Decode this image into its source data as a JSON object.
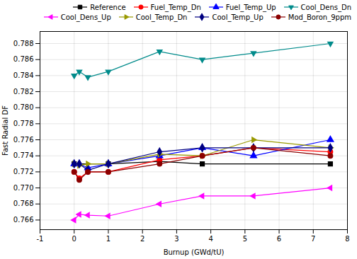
{
  "chart_data": {
    "type": "line",
    "xlabel": "Burnup (GWd/tU)",
    "ylabel": "Fast Radial DF",
    "xlim": [
      -1,
      8
    ],
    "ylim": [
      0.7648,
      0.7895
    ],
    "xticks": [
      -1,
      0,
      1,
      2,
      3,
      4,
      5,
      6,
      7,
      8
    ],
    "yticks": [
      0.766,
      0.768,
      {
        "value": 0.77,
        "label": "0.770"
      },
      0.772,
      0.774,
      0.776,
      0.778,
      {
        "value": 0.78,
        "label": "0.780"
      },
      0.782,
      0.784,
      0.786,
      0.788
    ],
    "grid": true,
    "legend": "upper right",
    "series": [
      {
        "name": "Reference",
        "color": "#000000",
        "marker": "square",
        "x": [
          0.0,
          1.0,
          2.5,
          3.75,
          7.5
        ],
        "values": [
          0.773,
          0.773,
          0.7733,
          0.773,
          0.773
        ]
      },
      {
        "name": "Fuel_Temp_Dn",
        "color": "#ff0000",
        "marker": "circle",
        "x": [
          0.0,
          0.15,
          0.4,
          1.0,
          2.5,
          3.75,
          5.25,
          7.5
        ],
        "values": [
          0.772,
          0.7712,
          0.772,
          0.772,
          0.7735,
          0.774,
          0.775,
          0.7745
        ]
      },
      {
        "name": "Fuel_Temp_Up",
        "color": "#0000ff",
        "marker": "triangle-up",
        "x": [
          0.0,
          0.15,
          0.4,
          1.0,
          2.5,
          3.75,
          5.25,
          7.5
        ],
        "values": [
          0.773,
          0.773,
          0.7725,
          0.773,
          0.774,
          0.775,
          0.774,
          0.776
        ]
      },
      {
        "name": "Cool_Dens_Dn",
        "color": "#008b8b",
        "marker": "triangle-down",
        "x": [
          0.0,
          0.15,
          0.4,
          1.0,
          2.5,
          3.75,
          5.25,
          7.5
        ],
        "values": [
          0.784,
          0.7845,
          0.7838,
          0.7845,
          0.787,
          0.786,
          0.7868,
          0.788
        ]
      },
      {
        "name": "Cool_Dens_Up",
        "color": "#ff00ff",
        "marker": "triangle-left",
        "x": [
          0.0,
          0.15,
          0.4,
          1.0,
          2.5,
          3.75,
          5.25,
          7.5
        ],
        "values": [
          0.766,
          0.7667,
          0.7666,
          0.7665,
          0.768,
          0.769,
          0.769,
          0.77
        ]
      },
      {
        "name": "Cool_Temp_Dn",
        "color": "#999900",
        "marker": "triangle-right",
        "x": [
          0.0,
          0.15,
          0.4,
          1.0,
          2.5,
          3.75,
          5.25,
          7.5
        ],
        "values": [
          0.773,
          0.7728,
          0.773,
          0.773,
          0.7742,
          0.774,
          0.776,
          0.775
        ]
      },
      {
        "name": "Cool_Temp_Up",
        "color": "#000080",
        "marker": "diamond",
        "x": [
          0.0,
          0.15,
          0.4,
          1.0,
          2.5,
          3.75,
          5.25,
          7.5
        ],
        "values": [
          0.773,
          0.773,
          0.7722,
          0.773,
          0.7745,
          0.775,
          0.775,
          0.775
        ]
      },
      {
        "name": "Mod_Boron_9ppm",
        "color": "#8b0000",
        "marker": "circle",
        "x": [
          0.0,
          0.15,
          0.4,
          1.0,
          2.5,
          3.75,
          5.25,
          7.5
        ],
        "values": [
          0.772,
          0.771,
          0.772,
          0.772,
          0.773,
          0.774,
          0.775,
          0.774
        ]
      }
    ]
  }
}
